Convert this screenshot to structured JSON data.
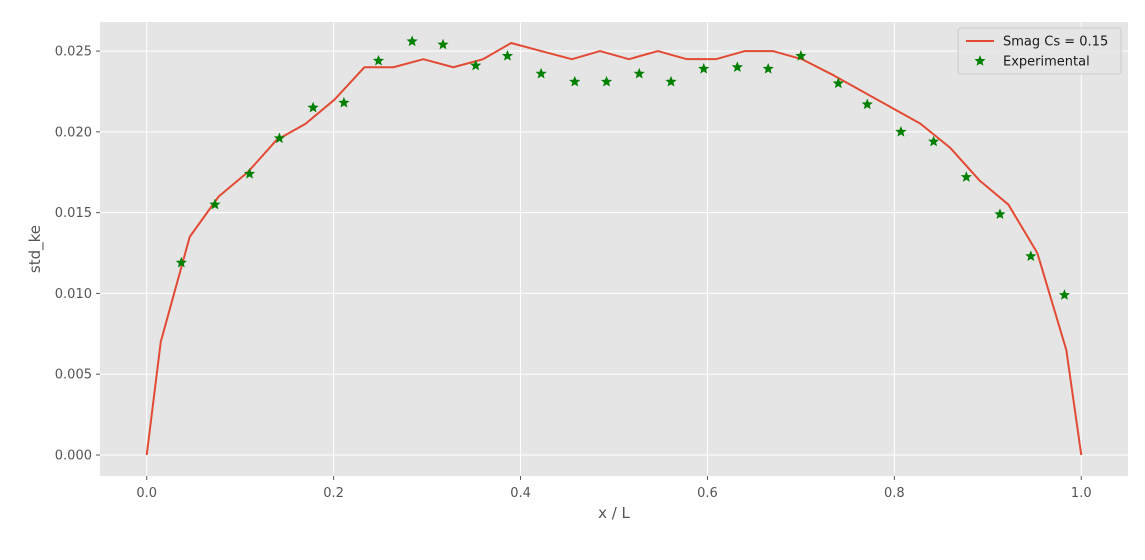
{
  "chart_data": {
    "type": "line",
    "xlabel": "x / L",
    "ylabel": "std_ke",
    "xlim": [
      -0.05,
      1.05
    ],
    "ylim": [
      -0.0013,
      0.0268
    ],
    "xticks": [
      0.0,
      0.2,
      0.4,
      0.6,
      0.8,
      1.0
    ],
    "xtick_labels": [
      "0.0",
      "0.2",
      "0.4",
      "0.6",
      "0.8",
      "1.0"
    ],
    "yticks": [
      0.0,
      0.005,
      0.01,
      0.015,
      0.02,
      0.025
    ],
    "ytick_labels": [
      "0.000",
      "0.005",
      "0.010",
      "0.015",
      "0.020",
      "0.025"
    ],
    "grid": true,
    "legend_position": "top-right",
    "series": [
      {
        "name": "Smag Cs = 0.15",
        "kind": "line",
        "color": "#e24a33",
        "x": [
          0.0,
          0.015,
          0.046,
          0.077,
          0.108,
          0.139,
          0.17,
          0.201,
          0.233,
          0.264,
          0.296,
          0.328,
          0.36,
          0.39,
          0.422,
          0.455,
          0.485,
          0.516,
          0.547,
          0.578,
          0.609,
          0.64,
          0.67,
          0.701,
          0.735,
          0.766,
          0.797,
          0.828,
          0.86,
          0.891,
          0.922,
          0.953,
          0.984,
          1.0
        ],
        "y": [
          0.0,
          0.007,
          0.0135,
          0.016,
          0.0175,
          0.0195,
          0.0205,
          0.022,
          0.024,
          0.024,
          0.0245,
          0.024,
          0.0245,
          0.0255,
          0.025,
          0.0245,
          0.025,
          0.0245,
          0.025,
          0.0245,
          0.0245,
          0.025,
          0.025,
          0.0245,
          0.0235,
          0.0225,
          0.0215,
          0.0205,
          0.019,
          0.017,
          0.0155,
          0.0125,
          0.0065,
          0.0
        ]
      },
      {
        "name": "Experimental",
        "kind": "scatter",
        "marker": "star",
        "color": "#008000",
        "x": [
          0.037,
          0.073,
          0.11,
          0.142,
          0.178,
          0.211,
          0.248,
          0.284,
          0.317,
          0.352,
          0.386,
          0.422,
          0.458,
          0.492,
          0.527,
          0.561,
          0.596,
          0.632,
          0.665,
          0.7,
          0.74,
          0.771,
          0.807,
          0.842,
          0.877,
          0.913,
          0.946,
          0.982
        ],
        "y": [
          0.0119,
          0.0155,
          0.0174,
          0.0196,
          0.0215,
          0.0218,
          0.0244,
          0.0256,
          0.0254,
          0.0241,
          0.0247,
          0.0236,
          0.0231,
          0.0231,
          0.0236,
          0.0231,
          0.0239,
          0.024,
          0.0239,
          0.0247,
          0.023,
          0.0217,
          0.02,
          0.0194,
          0.0172,
          0.0149,
          0.0123,
          0.0099
        ]
      }
    ]
  }
}
